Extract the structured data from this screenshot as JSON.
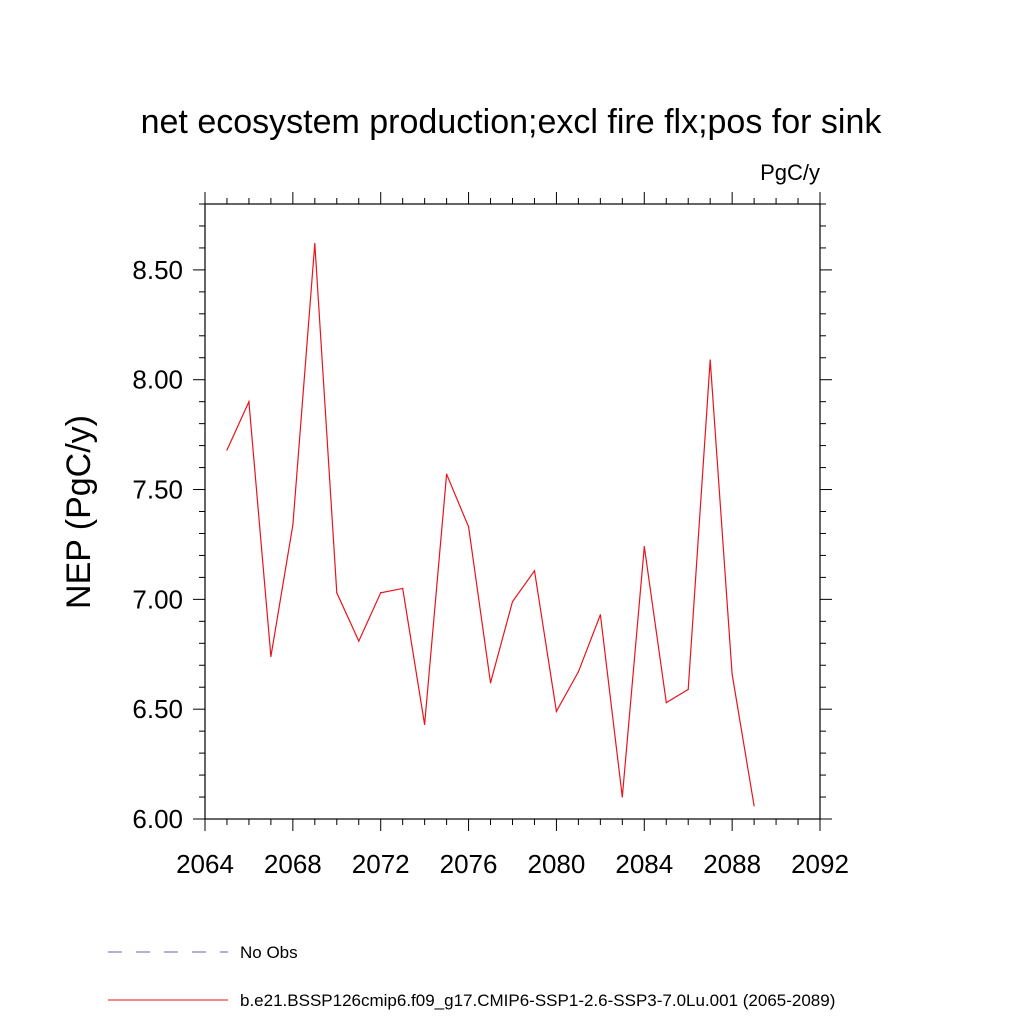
{
  "chart_data": {
    "type": "line",
    "title": "net ecosystem production;excl fire flx;pos for sink",
    "units_label": "PgC/y",
    "xlabel": "",
    "ylabel": "NEP  (PgC/y)",
    "xlim": [
      2064,
      2092
    ],
    "ylim": [
      6.0,
      8.8
    ],
    "xticks": [
      2064,
      2068,
      2072,
      2076,
      2080,
      2084,
      2088,
      2092
    ],
    "yticks": [
      6.0,
      6.5,
      7.0,
      7.5,
      8.0,
      8.5
    ],
    "ytick_labels": [
      "6.00",
      "6.50",
      "7.00",
      "7.50",
      "8.00",
      "8.50"
    ],
    "grid": false,
    "legend_position": "bottom",
    "legend": [
      {
        "label": "No Obs",
        "color": "#6b5fb0",
        "style": "dashed"
      },
      {
        "label": "b.e21.BSSP126cmip6.f09_g17.CMIP6-SSP1-2.6-SSP3-7.0Lu.001 (2065-2089)",
        "color": "#e8141b",
        "style": "solid"
      }
    ],
    "series": [
      {
        "color": "#e8141b",
        "x": [
          2065,
          2066,
          2067,
          2068,
          2069,
          2070,
          2071,
          2072,
          2073,
          2074,
          2075,
          2076,
          2077,
          2078,
          2079,
          2080,
          2081,
          2082,
          2083,
          2084,
          2085,
          2086,
          2087,
          2088,
          2089
        ],
        "values": [
          7.68,
          7.9,
          6.74,
          7.34,
          8.62,
          7.03,
          6.81,
          7.03,
          7.05,
          6.43,
          7.57,
          7.33,
          6.62,
          6.99,
          7.13,
          6.49,
          6.67,
          6.93,
          6.1,
          7.24,
          6.53,
          6.59,
          8.09,
          6.66,
          6.06
        ]
      }
    ]
  }
}
